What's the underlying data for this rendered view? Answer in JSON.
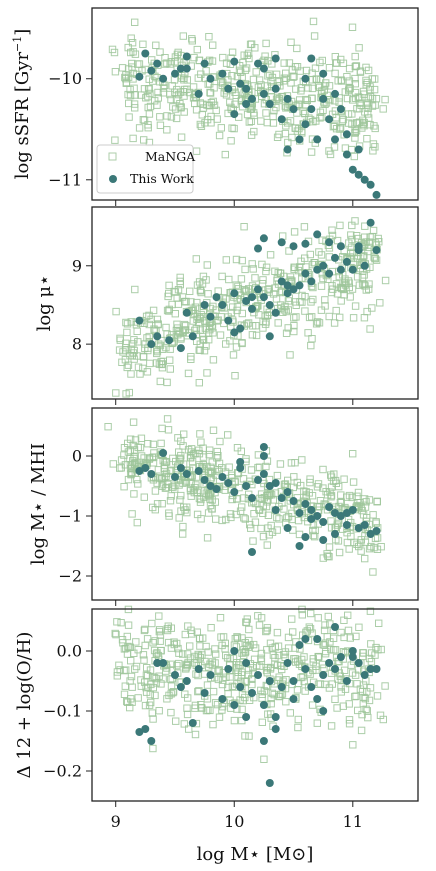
{
  "chart_data": [
    {
      "type": "scatter",
      "ylabel": "log sSFR [Gyr$^{-1}$]",
      "ylabel_main": "log sSFR [Gyr",
      "ylabel_sup": "−1",
      "ylabel_close": "]",
      "xlim": [
        8.8,
        11.55
      ],
      "ylim": [
        -11.2,
        -9.3
      ],
      "yticks": [
        -10,
        -11
      ],
      "ytick_labels": [
        "−10",
        "−11"
      ],
      "legend": {
        "placement": "lower-left",
        "entries": [
          "MaNGA",
          "This Work"
        ]
      },
      "series": [
        {
          "name": "MaNGA",
          "marker": "open-square",
          "color": "#9dc69a",
          "n": 520,
          "trend": {
            "y_at_9": -10.0,
            "slope": -0.12,
            "scatter": 0.25
          }
        },
        {
          "name": "This Work",
          "marker": "filled-circle",
          "color": "#3b7878",
          "x": [
            9.2,
            9.25,
            9.3,
            9.35,
            9.4,
            9.5,
            9.55,
            9.6,
            9.7,
            9.75,
            9.8,
            9.9,
            9.95,
            10.0,
            10.05,
            10.1,
            10.15,
            10.2,
            10.25,
            10.3,
            10.35,
            10.4,
            10.45,
            10.5,
            10.55,
            10.6,
            10.65,
            10.7,
            10.75,
            10.8,
            10.85,
            10.9,
            10.95,
            11.0,
            11.05,
            11.1,
            11.15,
            11.2,
            10.25,
            10.45,
            10.65,
            10.85,
            11.05,
            10.1,
            10.6,
            10.35,
            9.6,
            10.0,
            10.75,
            10.95
          ],
          "y": [
            -9.98,
            -9.75,
            -9.92,
            -9.85,
            -10.0,
            -9.95,
            -9.9,
            -9.9,
            -10.15,
            -9.85,
            -10.0,
            -9.95,
            -10.1,
            -10.35,
            -10.05,
            -10.1,
            -10.2,
            -9.85,
            -10.15,
            -10.25,
            -10.1,
            -10.4,
            -10.2,
            -10.3,
            -10.6,
            -10.45,
            -10.3,
            -10.6,
            -9.95,
            -10.4,
            -10.6,
            -10.3,
            -10.55,
            -10.9,
            -10.95,
            -11.0,
            -11.05,
            -11.15,
            -9.9,
            -10.7,
            -9.8,
            -10.15,
            -10.7,
            -10.25,
            -10.0,
            -9.8,
            -9.78,
            -9.83,
            -10.2,
            -10.75
          ]
        }
      ]
    },
    {
      "type": "scatter",
      "ylabel": "log μ⋆",
      "xlim": [
        8.8,
        11.55
      ],
      "ylim": [
        7.3,
        9.75
      ],
      "yticks": [
        9,
        8
      ],
      "ytick_labels": [
        "9",
        "8"
      ],
      "series": [
        {
          "name": "MaNGA",
          "marker": "open-square",
          "color": "#9dc69a",
          "n": 520,
          "trend": {
            "y_at_9": 7.9,
            "slope": 0.55,
            "scatter": 0.3
          }
        },
        {
          "name": "This Work",
          "marker": "filled-circle",
          "color": "#3b7878",
          "x": [
            9.2,
            9.3,
            9.35,
            9.45,
            9.55,
            9.6,
            9.65,
            9.75,
            9.8,
            9.85,
            9.9,
            9.95,
            10.0,
            10.05,
            10.1,
            10.15,
            10.2,
            10.25,
            10.3,
            10.35,
            10.4,
            10.45,
            10.5,
            10.55,
            10.6,
            10.65,
            10.7,
            10.75,
            10.8,
            10.85,
            10.9,
            10.95,
            11.0,
            11.05,
            11.1,
            11.15,
            11.2,
            10.0,
            10.2,
            10.4,
            10.6,
            10.8,
            10.3,
            10.5,
            10.7,
            10.9,
            11.05,
            10.15,
            10.45,
            10.25
          ],
          "y": [
            8.3,
            8.0,
            8.1,
            8.05,
            7.95,
            8.4,
            8.1,
            8.5,
            8.35,
            8.6,
            8.5,
            8.3,
            8.65,
            8.2,
            8.55,
            8.45,
            8.7,
            8.6,
            8.5,
            8.4,
            8.8,
            8.65,
            8.7,
            8.75,
            8.9,
            8.8,
            8.95,
            9.0,
            8.9,
            9.1,
            8.95,
            9.05,
            8.95,
            9.2,
            9.0,
            9.55,
            9.2,
            8.15,
            9.22,
            9.3,
            9.28,
            9.3,
            8.1,
            9.25,
            9.4,
            9.25,
            9.25,
            8.6,
            8.75,
            9.35
          ]
        }
      ]
    },
    {
      "type": "scatter",
      "ylabel": "log M⋆ / MHI",
      "xlim": [
        8.8,
        11.55
      ],
      "ylim": [
        -2.4,
        0.8
      ],
      "yticks": [
        0,
        -1,
        -2
      ],
      "ytick_labels": [
        "0",
        "−1",
        "−2"
      ],
      "series": [
        {
          "name": "MaNGA",
          "marker": "open-square",
          "color": "#9dc69a",
          "n": 520,
          "trend": {
            "y_at_9": -0.1,
            "slope": -0.45,
            "scatter": 0.35
          }
        },
        {
          "name": "This Work",
          "marker": "filled-circle",
          "color": "#3b7878",
          "x": [
            9.2,
            9.25,
            9.3,
            9.4,
            9.5,
            9.55,
            9.6,
            9.7,
            9.75,
            9.8,
            9.9,
            9.95,
            10.0,
            10.05,
            10.1,
            10.15,
            10.2,
            10.25,
            10.3,
            10.35,
            10.4,
            10.45,
            10.5,
            10.55,
            10.6,
            10.65,
            10.7,
            10.75,
            10.8,
            10.85,
            10.9,
            10.95,
            11.0,
            11.05,
            11.1,
            11.15,
            11.2,
            10.05,
            10.25,
            10.45,
            10.65,
            10.85,
            10.15,
            10.35,
            10.55,
            10.75,
            10.95,
            9.85,
            10.25,
            10.6
          ],
          "y": [
            -0.25,
            -0.2,
            -0.3,
            0.05,
            -0.35,
            -0.2,
            -0.3,
            -0.25,
            -0.4,
            -0.5,
            -0.35,
            -0.45,
            -0.6,
            -0.2,
            -0.5,
            -0.7,
            -0.4,
            0.15,
            -0.5,
            -0.45,
            -0.7,
            -0.6,
            -0.75,
            -0.95,
            -0.8,
            -0.9,
            -1.0,
            -1.1,
            -0.85,
            -0.95,
            -1.0,
            -1.15,
            -0.9,
            -1.2,
            -1.15,
            -1.3,
            -1.25,
            -0.1,
            -0.3,
            -1.2,
            -1.05,
            -1.3,
            -1.6,
            -0.9,
            -1.5,
            -1.4,
            -0.95,
            -0.55,
            0.0,
            -1.35
          ]
        }
      ]
    },
    {
      "type": "scatter",
      "ylabel": "Δ 12 + log(O/H)",
      "xlabel": "log M⋆ [M⊙]",
      "xlim": [
        8.8,
        11.55
      ],
      "ylim": [
        -0.25,
        0.07
      ],
      "yticks": [
        0.0,
        -0.1,
        -0.2
      ],
      "ytick_labels": [
        "0.0",
        "−0.1",
        "−0.2"
      ],
      "xticks": [
        9,
        10,
        11
      ],
      "xtick_labels": [
        "9",
        "10",
        "11"
      ],
      "series": [
        {
          "name": "MaNGA",
          "marker": "open-square",
          "color": "#9dc69a",
          "n": 520,
          "trend": {
            "y_at_9": -0.03,
            "slope": 0.0,
            "scatter": 0.05
          }
        },
        {
          "name": "This Work",
          "marker": "filled-circle",
          "color": "#3b7878",
          "x": [
            9.2,
            9.25,
            9.3,
            9.4,
            9.5,
            9.55,
            9.6,
            9.7,
            9.75,
            9.8,
            9.9,
            9.95,
            10.0,
            10.05,
            10.1,
            10.15,
            10.2,
            10.25,
            10.3,
            10.35,
            10.4,
            10.45,
            10.5,
            10.55,
            10.6,
            10.65,
            10.7,
            10.75,
            10.8,
            10.85,
            10.9,
            10.95,
            11.0,
            11.05,
            11.1,
            11.15,
            11.2,
            10.1,
            10.35,
            10.6,
            10.85,
            10.0,
            10.25,
            10.5,
            10.75,
            11.0,
            9.35,
            9.65,
            10.3,
            10.7
          ],
          "y": [
            -0.135,
            -0.13,
            -0.15,
            -0.02,
            -0.04,
            -0.06,
            -0.05,
            -0.03,
            -0.07,
            -0.04,
            -0.08,
            -0.03,
            0.0,
            -0.06,
            -0.02,
            -0.07,
            -0.04,
            -0.09,
            -0.05,
            -0.11,
            -0.06,
            -0.02,
            -0.08,
            0.01,
            -0.03,
            -0.06,
            0.02,
            -0.04,
            -0.02,
            -0.03,
            -0.01,
            -0.05,
            0.0,
            -0.02,
            -0.04,
            -0.03,
            -0.03,
            -0.11,
            -0.13,
            0.02,
            0.04,
            -0.09,
            -0.15,
            -0.05,
            -0.1,
            -0.01,
            -0.02,
            -0.12,
            -0.22,
            -0.08
          ]
        }
      ]
    }
  ]
}
